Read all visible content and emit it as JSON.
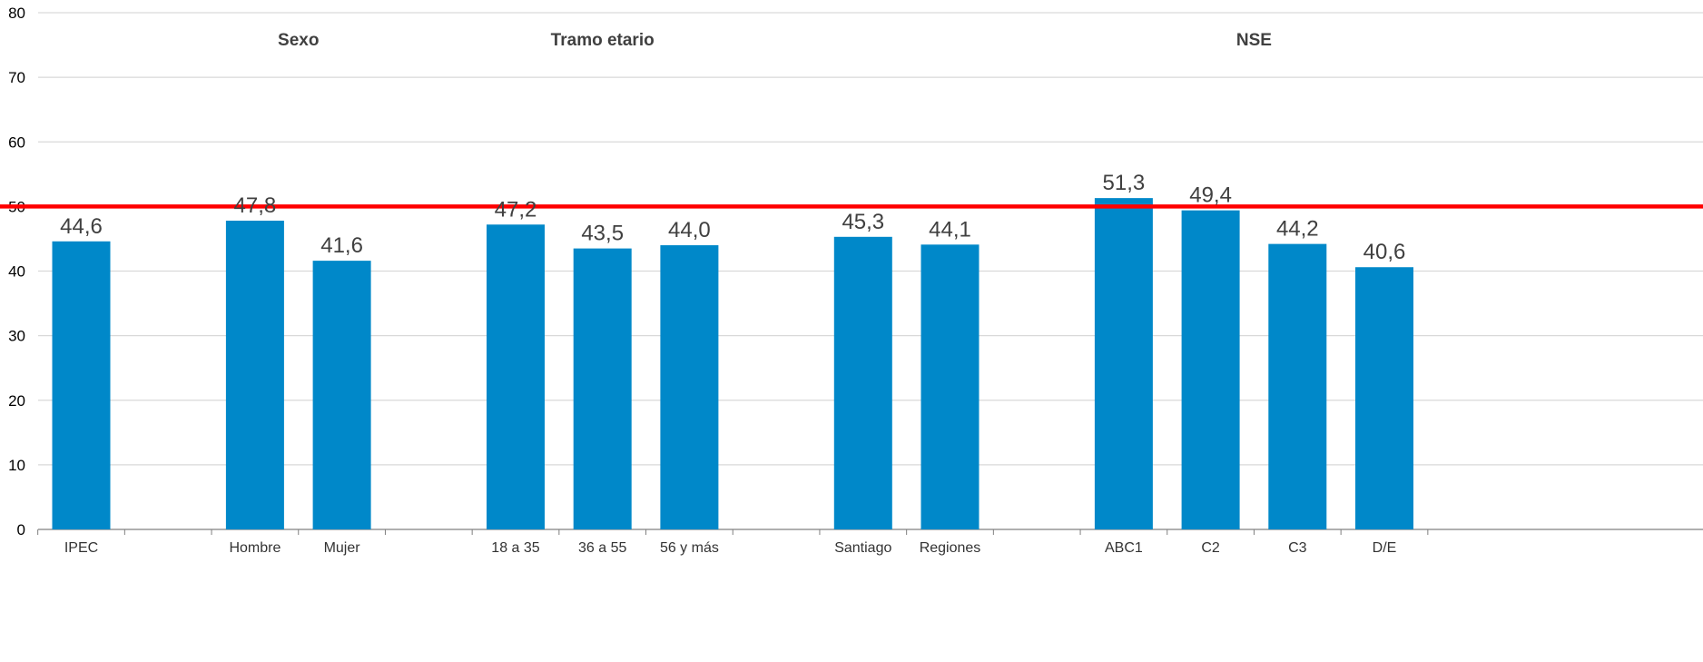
{
  "chart_data": {
    "type": "bar",
    "title": "",
    "xlabel": "",
    "ylabel": "",
    "ylim": [
      0,
      80
    ],
    "yticks": [
      0,
      10,
      20,
      30,
      40,
      50,
      60,
      70,
      80
    ],
    "grid": true,
    "legend": "none",
    "reference_line": {
      "value": 50,
      "color": "#ff0000"
    },
    "groups": [
      "Sexo",
      "Tramo etario",
      "NSE"
    ],
    "categories": [
      "IPEC",
      "Hombre",
      "Mujer",
      "18 a 35",
      "36 a 55",
      "56 y más",
      "Santiago",
      "Regiones",
      "ABC1",
      "C2",
      "C3",
      "D/E"
    ],
    "values": [
      44.6,
      47.8,
      41.6,
      47.2,
      43.5,
      44.0,
      45.3,
      44.1,
      51.3,
      49.4,
      44.2,
      40.6
    ],
    "value_labels": [
      "44,6",
      "47,8",
      "41,6",
      "47,2",
      "43,5",
      "44,0",
      "45,3",
      "44,1",
      "51,3",
      "49,4",
      "44,2",
      "40,6"
    ],
    "colors": {
      "bar": "#0088c9",
      "grid": "#d9d9d9",
      "axis": "#808080"
    }
  }
}
